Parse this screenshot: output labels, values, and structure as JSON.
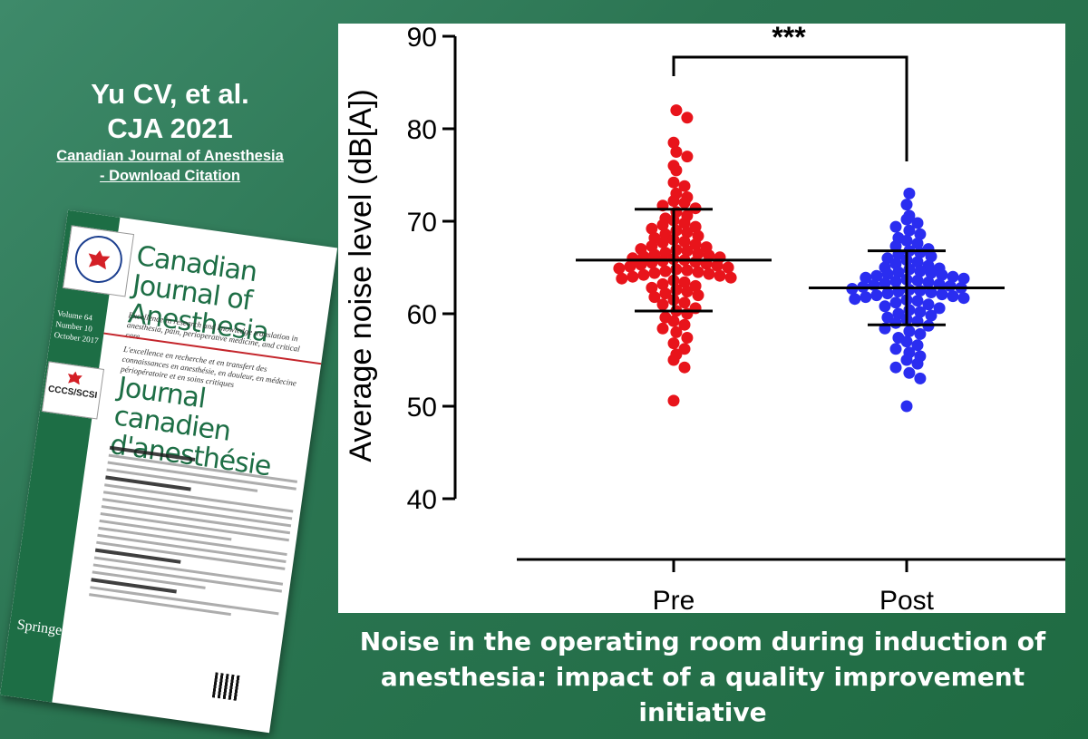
{
  "citation": {
    "line1": "Yu CV, et al.",
    "line2": "CJA 2021",
    "link1": "Canadian Journal of Anesthesia",
    "link2": "- Download Citation"
  },
  "cover": {
    "title_en": "Canadian Journal of Anesthesia",
    "tagline_en": "Excellence in research and knowledge translation in anesthesia, pain, perioperative medicine, and critical care",
    "tagline_fr": "L'excellence en recherche et en transfert des connaissances en anesthésie, en douleur, en médecine périopératoire et en soins critiques",
    "title_fr": "Journal canadien d'anesthésie",
    "volume": "Volume 64",
    "number": "Number 10",
    "date": "October 2017",
    "society": "CCCS/SCSI",
    "publisher": "Springer"
  },
  "caption": "Noise in the operating room during induction of anesthesia: impact of a quality improvement initiative",
  "chart_data": {
    "type": "scatter",
    "title": "",
    "xlabel": "",
    "ylabel": "Average noise level (dB[A])",
    "ylim": [
      40,
      90
    ],
    "yticks": [
      40,
      50,
      60,
      70,
      80,
      90
    ],
    "categories": [
      "Pre",
      "Post"
    ],
    "significance": "***",
    "grid": false,
    "series": [
      {
        "name": "Pre",
        "color": "#e8141b",
        "mean": 65.8,
        "sd_upper": 71.3,
        "sd_lower": 60.3,
        "values": [
          82.0,
          81.2,
          78.5,
          77.5,
          77.0,
          76.0,
          75.5,
          74.2,
          73.8,
          73.0,
          72.6,
          72.2,
          72.0,
          71.7,
          71.4,
          71.0,
          70.6,
          70.3,
          70.1,
          69.8,
          69.6,
          69.4,
          69.2,
          69.0,
          68.8,
          68.6,
          68.4,
          68.2,
          68.0,
          67.8,
          67.7,
          67.5,
          67.3,
          67.2,
          67.0,
          66.9,
          66.8,
          66.6,
          66.5,
          66.4,
          66.3,
          66.2,
          66.1,
          66.0,
          65.9,
          65.8,
          65.7,
          65.6,
          65.5,
          65.4,
          65.3,
          65.2,
          65.1,
          65.0,
          64.9,
          64.8,
          64.7,
          64.6,
          64.5,
          64.4,
          64.3,
          64.2,
          64.1,
          64.0,
          63.9,
          63.8,
          63.6,
          63.4,
          63.2,
          63.0,
          62.8,
          62.6,
          62.4,
          62.2,
          62.0,
          61.8,
          61.5,
          61.2,
          61.0,
          60.6,
          60.3,
          60.0,
          59.6,
          59.2,
          58.8,
          58.4,
          58.0,
          57.4,
          56.8,
          56.2,
          55.6,
          55.0,
          54.2,
          50.6
        ]
      },
      {
        "name": "Post",
        "color": "#2a2df0",
        "mean": 62.8,
        "sd_upper": 66.8,
        "sd_lower": 58.8,
        "values": [
          73.0,
          71.8,
          70.6,
          70.2,
          69.8,
          69.4,
          69.0,
          68.6,
          68.2,
          67.9,
          67.6,
          67.3,
          67.0,
          66.8,
          66.6,
          66.4,
          66.2,
          66.0,
          65.8,
          65.6,
          65.4,
          65.2,
          65.0,
          64.9,
          64.8,
          64.6,
          64.5,
          64.4,
          64.3,
          64.2,
          64.1,
          64.0,
          63.9,
          63.8,
          63.7,
          63.6,
          63.5,
          63.4,
          63.3,
          63.2,
          63.1,
          63.0,
          62.9,
          62.8,
          62.7,
          62.6,
          62.5,
          62.4,
          62.3,
          62.2,
          62.1,
          62.0,
          61.9,
          61.8,
          61.7,
          61.6,
          61.5,
          61.4,
          61.2,
          61.0,
          60.8,
          60.6,
          60.4,
          60.2,
          60.0,
          59.8,
          59.6,
          59.4,
          59.2,
          59.0,
          58.7,
          58.4,
          58.1,
          57.8,
          57.4,
          57.0,
          56.6,
          56.2,
          55.8,
          55.4,
          55.0,
          54.6,
          54.2,
          53.6,
          53.0,
          50.0
        ]
      }
    ]
  }
}
